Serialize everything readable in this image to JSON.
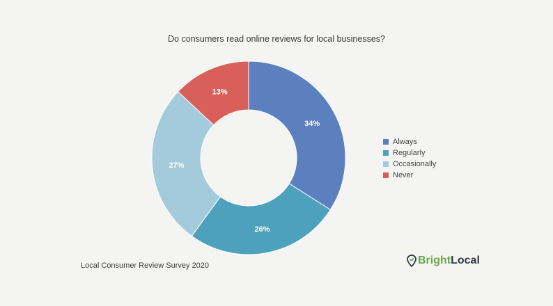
{
  "title": "Do consumers read online reviews for local businesses?",
  "footer": "Local Consumer Review Survey 2020",
  "logo": {
    "part1": "Bright",
    "part2": "Local",
    "icon": "location-pin-icon"
  },
  "chart_data": {
    "type": "pie",
    "donut": true,
    "title": "Do consumers read online reviews for local businesses?",
    "legend_position": "right",
    "categories": [
      "Always",
      "Regularly",
      "Occasionally",
      "Never"
    ],
    "values": [
      34,
      26,
      27,
      13
    ],
    "labels": [
      "34%",
      "26%",
      "27%",
      "13%"
    ],
    "colors": [
      "#5b7fbf",
      "#4ea1bc",
      "#a4cbdc",
      "#d9605a"
    ]
  }
}
